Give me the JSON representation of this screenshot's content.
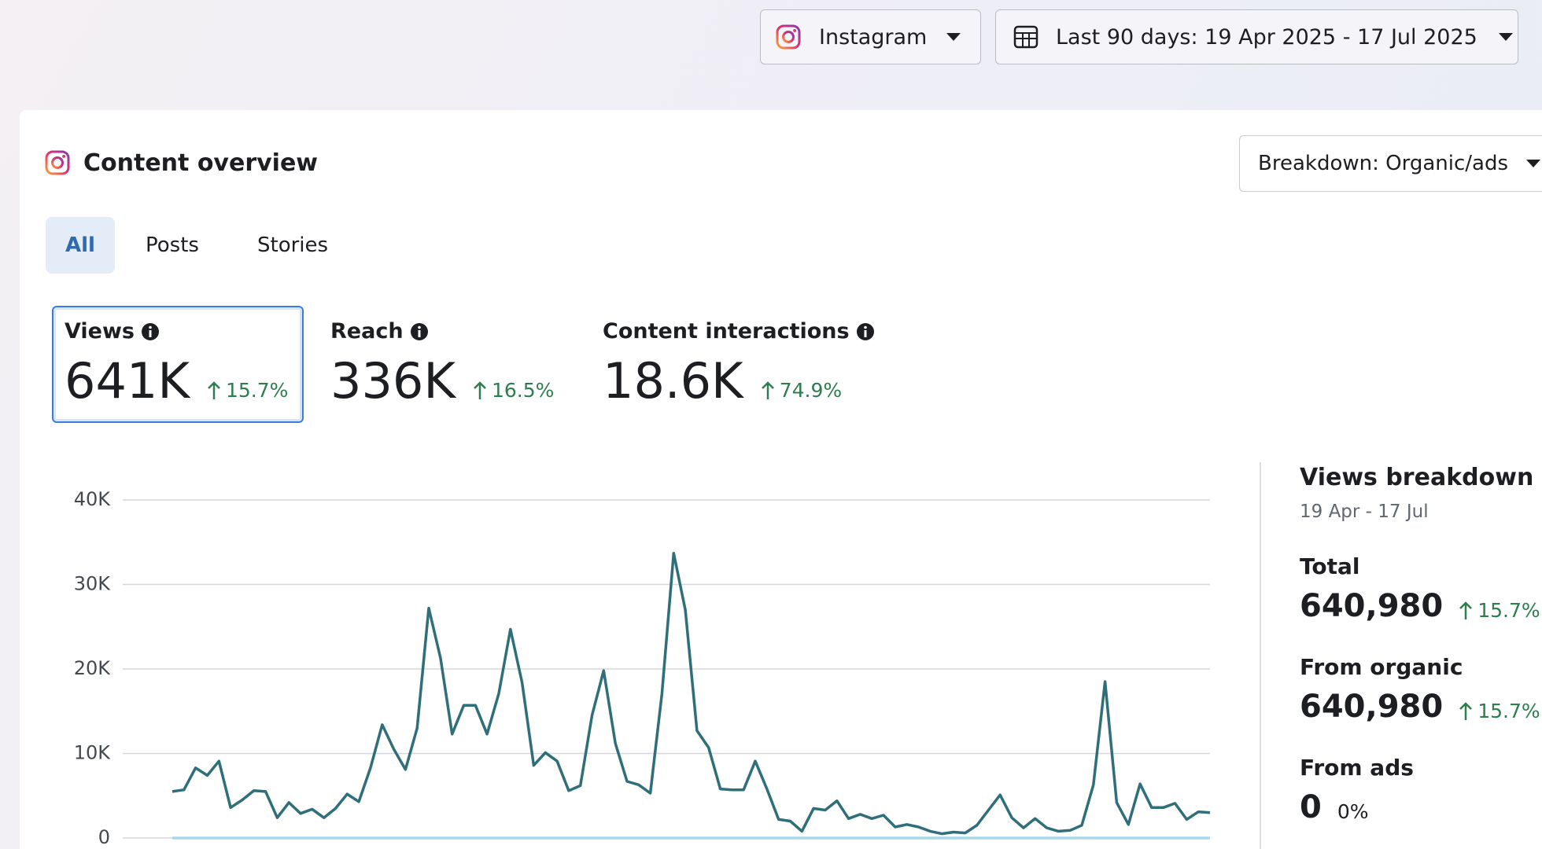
{
  "header": {
    "account": "Instagram",
    "date_range": "Last 90 days: 19 Apr 2025 - 17 Jul 2025"
  },
  "card": {
    "title": "Content overview",
    "breakdown": "Breakdown: Organic/ads",
    "tabs": [
      "All",
      "Posts",
      "Stories"
    ],
    "metrics": [
      {
        "label": "Views",
        "value": "641K",
        "change": "15.7%"
      },
      {
        "label": "Reach",
        "value": "336K",
        "change": "16.5%"
      },
      {
        "label": "Content interactions",
        "value": "18.6K",
        "change": "74.9%"
      }
    ]
  },
  "chart_data": {
    "type": "line",
    "series": [
      {
        "color": "#2f6f7a",
        "values": [
          5500,
          5700,
          8300,
          7400,
          9100,
          3600,
          4500,
          5600,
          5500,
          2400,
          4200,
          2900,
          3400,
          2400,
          3500,
          5200,
          4300,
          8300,
          13400,
          10500,
          8100,
          13000,
          27200,
          21300,
          12300,
          15700,
          15700,
          12300,
          17100,
          24700,
          18400,
          8600,
          10100,
          9100,
          5600,
          6200,
          14500,
          19800,
          11200,
          6700,
          6300,
          5300,
          17100,
          33700,
          27000,
          12700,
          10700,
          5800,
          5700,
          5700,
          9100,
          5800,
          2200,
          2000,
          800,
          3500,
          3300,
          4400,
          2300,
          2800,
          2300,
          2700,
          1300,
          1600,
          1300,
          800,
          500,
          700,
          600,
          1500,
          3300,
          5100,
          2400,
          1200,
          2300,
          1200,
          800,
          900,
          1500,
          6300,
          18500,
          4200,
          1600,
          6400,
          3600,
          3600,
          4100,
          2200,
          3100,
          3000
        ]
      },
      {
        "color": "#a8d8ec",
        "values": [
          0,
          0,
          0,
          0,
          0,
          0,
          0,
          0,
          0,
          0,
          0,
          0,
          0,
          0,
          0,
          0,
          0,
          0,
          0,
          0,
          0,
          0,
          0,
          0,
          0,
          0,
          0,
          0,
          0,
          0,
          0,
          0,
          0,
          0,
          0,
          0,
          0,
          0,
          0,
          0,
          0,
          0,
          0,
          0,
          0,
          0,
          0,
          0,
          0,
          0,
          0,
          0,
          0,
          0,
          0,
          0,
          0,
          0,
          0,
          0,
          0,
          0,
          0,
          0,
          0,
          0,
          0,
          0,
          0,
          0,
          0,
          0,
          0,
          0,
          0,
          0,
          0,
          0,
          0,
          0,
          0,
          0,
          0,
          0,
          0,
          0,
          0,
          0,
          0,
          0
        ]
      }
    ],
    "ylim": [
      0,
      40000
    ],
    "yticks": [
      0,
      {
        "value": 10000,
        "label": "10K"
      },
      {
        "value": 20000,
        "label": "20K"
      },
      {
        "value": 30000,
        "label": "30K"
      },
      {
        "value": 40000,
        "label": "40K"
      }
    ],
    "grid": true
  },
  "breakdown": {
    "title": "Views breakdown",
    "period": "19 Apr - 17 Jul",
    "items": [
      {
        "label": "Total",
        "value": "640,980",
        "change": "15.7%"
      },
      {
        "label": "From organic",
        "value": "640,980",
        "change": "15.7%"
      },
      {
        "label": "From ads",
        "value": "0",
        "change": "0%"
      }
    ]
  }
}
